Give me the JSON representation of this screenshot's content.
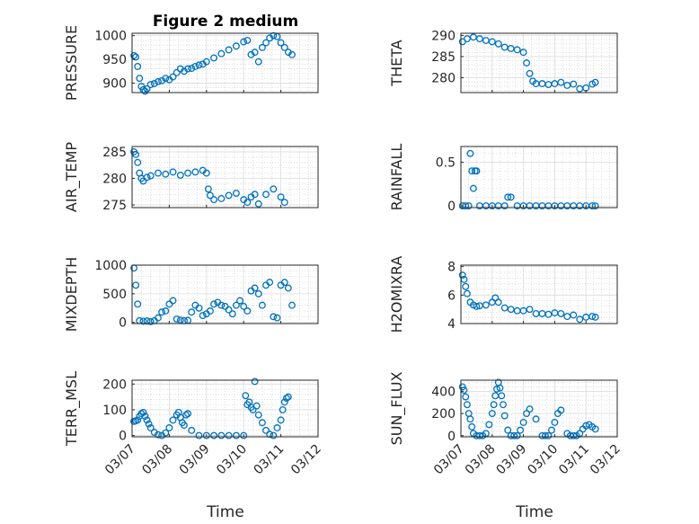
{
  "chart_data": {
    "type": "scatter",
    "title": "Figure 2 medium",
    "xlabel": "Time",
    "x_ticks": [
      "03/07",
      "03/08",
      "03/09",
      "03/10",
      "03/11",
      "03/12"
    ],
    "xlim": [
      0,
      5
    ],
    "marker_color": "#0072BD",
    "panels": [
      {
        "id": "pressure",
        "ylabel": "PRESSURE",
        "ylim": [
          880,
          1005
        ],
        "yticks": [
          900,
          950,
          1000
        ],
        "x": [
          0.05,
          0.1,
          0.15,
          0.2,
          0.25,
          0.3,
          0.35,
          0.4,
          0.5,
          0.6,
          0.7,
          0.8,
          0.9,
          1.0,
          1.1,
          1.2,
          1.3,
          1.4,
          1.5,
          1.6,
          1.7,
          1.8,
          1.9,
          2.0,
          2.2,
          2.4,
          2.6,
          2.8,
          3.0,
          3.1,
          3.2,
          3.3,
          3.4,
          3.5,
          3.6,
          3.7,
          3.8,
          3.9,
          4.0,
          4.1,
          4.2,
          4.3
        ],
        "values": [
          958,
          955,
          935,
          910,
          893,
          886,
          883,
          888,
          897,
          899,
          903,
          905,
          910,
          907,
          913,
          922,
          930,
          925,
          930,
          931,
          935,
          938,
          940,
          945,
          953,
          962,
          970,
          978,
          987,
          990,
          960,
          965,
          945,
          975,
          985,
          995,
          1000,
          998,
          985,
          975,
          965,
          960
        ]
      },
      {
        "id": "theta",
        "ylabel": "THETA",
        "ylim": [
          276.5,
          290.5
        ],
        "yticks": [
          280,
          285,
          290
        ],
        "x": [
          0.05,
          0.2,
          0.4,
          0.6,
          0.8,
          1.0,
          1.2,
          1.4,
          1.6,
          1.8,
          2.0,
          2.1,
          2.2,
          2.3,
          2.4,
          2.6,
          2.8,
          3.0,
          3.2,
          3.4,
          3.6,
          3.8,
          4.0,
          4.2,
          4.3
        ],
        "values": [
          288.5,
          289.2,
          289.6,
          289.2,
          288.8,
          288.5,
          288.0,
          287.2,
          286.9,
          286.6,
          286.0,
          283.5,
          281.0,
          279.2,
          278.6,
          278.6,
          278.4,
          278.6,
          278.9,
          278.2,
          278.5,
          277.4,
          277.6,
          278.5,
          278.9
        ]
      },
      {
        "id": "air_temp",
        "ylabel": "AIR_TEMP",
        "ylim": [
          274.5,
          286
        ],
        "yticks": [
          275,
          280,
          285
        ],
        "x": [
          0.05,
          0.1,
          0.15,
          0.2,
          0.25,
          0.3,
          0.4,
          0.5,
          0.7,
          0.9,
          1.1,
          1.3,
          1.5,
          1.7,
          1.9,
          2.0,
          2.05,
          2.1,
          2.2,
          2.4,
          2.6,
          2.8,
          3.0,
          3.1,
          3.2,
          3.3,
          3.4,
          3.6,
          3.8,
          4.0,
          4.1
        ],
        "values": [
          285,
          284.5,
          283,
          281,
          280,
          279.5,
          280.2,
          280.5,
          281,
          280.8,
          281.2,
          280.6,
          281,
          281.2,
          281.5,
          281,
          278,
          276.8,
          276,
          276.2,
          276.8,
          277.2,
          276,
          275.5,
          276.5,
          277,
          275.2,
          277,
          278,
          276.5,
          275.5
        ]
      },
      {
        "id": "rainfall",
        "ylabel": "RAINFALL",
        "ylim": [
          -0.02,
          0.68
        ],
        "yticks": [
          0,
          0.5
        ],
        "x": [
          0.05,
          0.15,
          0.25,
          0.3,
          0.35,
          0.4,
          0.45,
          0.5,
          0.6,
          0.8,
          1.0,
          1.2,
          1.4,
          1.5,
          1.6,
          1.8,
          2.0,
          2.2,
          2.4,
          2.6,
          2.8,
          3.0,
          3.2,
          3.4,
          3.6,
          3.8,
          4.0,
          4.2,
          4.3
        ],
        "values": [
          0,
          0,
          0,
          0.6,
          0.4,
          0.2,
          0.4,
          0.4,
          0,
          0,
          0,
          0,
          0,
          0.1,
          0.1,
          0,
          0,
          0,
          0,
          0,
          0,
          0,
          0,
          0,
          0,
          0,
          0,
          0,
          0
        ]
      },
      {
        "id": "mixdepth",
        "ylabel": "MIXDEPTH",
        "ylim": [
          -20,
          1000
        ],
        "yticks": [
          0,
          500,
          1000
        ],
        "x": [
          0.05,
          0.1,
          0.15,
          0.2,
          0.3,
          0.4,
          0.5,
          0.6,
          0.7,
          0.8,
          0.9,
          1.0,
          1.1,
          1.2,
          1.3,
          1.4,
          1.5,
          1.6,
          1.7,
          1.8,
          1.9,
          2.0,
          2.1,
          2.2,
          2.3,
          2.4,
          2.5,
          2.6,
          2.7,
          2.8,
          2.9,
          3.0,
          3.1,
          3.2,
          3.3,
          3.4,
          3.5,
          3.6,
          3.7,
          3.8,
          3.9,
          4.0,
          4.1,
          4.2,
          4.3
        ],
        "values": [
          950,
          650,
          320,
          30,
          20,
          25,
          15,
          30,
          80,
          180,
          200,
          320,
          380,
          60,
          40,
          30,
          35,
          180,
          300,
          250,
          120,
          150,
          200,
          320,
          350,
          300,
          280,
          220,
          150,
          300,
          380,
          280,
          200,
          550,
          600,
          500,
          300,
          650,
          700,
          100,
          80,
          650,
          700,
          600,
          300
        ]
      },
      {
        "id": "h2omixra",
        "ylabel": "H2OMIXRA",
        "ylim": [
          4,
          8.1
        ],
        "yticks": [
          4,
          6,
          8
        ],
        "x": [
          0.05,
          0.1,
          0.15,
          0.2,
          0.3,
          0.4,
          0.5,
          0.6,
          0.8,
          1.0,
          1.1,
          1.2,
          1.4,
          1.6,
          1.8,
          2.0,
          2.2,
          2.4,
          2.6,
          2.8,
          3.0,
          3.2,
          3.4,
          3.6,
          3.8,
          4.0,
          4.2,
          4.3
        ],
        "values": [
          7.4,
          7.1,
          6.6,
          6.1,
          5.5,
          5.3,
          5.2,
          5.25,
          5.3,
          5.5,
          5.8,
          5.5,
          5.1,
          5.0,
          4.9,
          4.9,
          5.0,
          4.7,
          4.7,
          4.65,
          4.75,
          4.7,
          4.5,
          4.6,
          4.3,
          4.45,
          4.5,
          4.45
        ]
      },
      {
        "id": "terr_msl",
        "ylabel": "TERR_MSL",
        "ylim": [
          -5,
          215
        ],
        "yticks": [
          0,
          100,
          200
        ],
        "x": [
          0.05,
          0.1,
          0.15,
          0.2,
          0.25,
          0.3,
          0.35,
          0.4,
          0.45,
          0.5,
          0.6,
          0.7,
          0.8,
          0.9,
          1.0,
          1.1,
          1.2,
          1.25,
          1.3,
          1.35,
          1.4,
          1.45,
          1.5,
          1.6,
          1.8,
          2.0,
          2.2,
          2.4,
          2.6,
          2.8,
          3.0,
          3.05,
          3.1,
          3.15,
          3.2,
          3.25,
          3.3,
          3.35,
          3.4,
          3.5,
          3.6,
          3.7,
          3.8,
          3.9,
          4.0,
          4.05,
          4.1,
          4.15,
          4.2
        ],
        "values": [
          55,
          57,
          60,
          75,
          85,
          90,
          75,
          60,
          45,
          30,
          12,
          3,
          0,
          10,
          30,
          60,
          80,
          90,
          70,
          50,
          40,
          80,
          85,
          20,
          0,
          0,
          0,
          0,
          0,
          0,
          0,
          155,
          120,
          130,
          110,
          100,
          210,
          115,
          80,
          50,
          20,
          5,
          0,
          30,
          60,
          100,
          130,
          145,
          150
        ]
      },
      {
        "id": "sun_flux",
        "ylabel": "SUN_FLUX",
        "ylim": [
          -10,
          500
        ],
        "yticks": [
          0,
          200,
          400
        ],
        "x": [
          0.05,
          0.1,
          0.15,
          0.2,
          0.25,
          0.3,
          0.35,
          0.4,
          0.5,
          0.6,
          0.7,
          0.8,
          0.9,
          1.0,
          1.05,
          1.1,
          1.15,
          1.2,
          1.25,
          1.3,
          1.35,
          1.4,
          1.5,
          1.6,
          1.7,
          1.8,
          1.9,
          2.0,
          2.1,
          2.2,
          2.4,
          2.6,
          2.7,
          2.8,
          2.9,
          3.0,
          3.1,
          3.2,
          3.4,
          3.5,
          3.6,
          3.7,
          3.8,
          3.9,
          4.0,
          4.1,
          4.2,
          4.3
        ],
        "values": [
          440,
          410,
          350,
          280,
          200,
          150,
          80,
          20,
          0,
          0,
          0,
          20,
          100,
          200,
          280,
          360,
          420,
          480,
          430,
          360,
          280,
          180,
          50,
          0,
          0,
          0,
          50,
          120,
          200,
          240,
          150,
          0,
          0,
          0,
          50,
          120,
          200,
          230,
          20,
          0,
          0,
          0,
          20,
          60,
          90,
          100,
          80,
          60
        ]
      }
    ]
  }
}
